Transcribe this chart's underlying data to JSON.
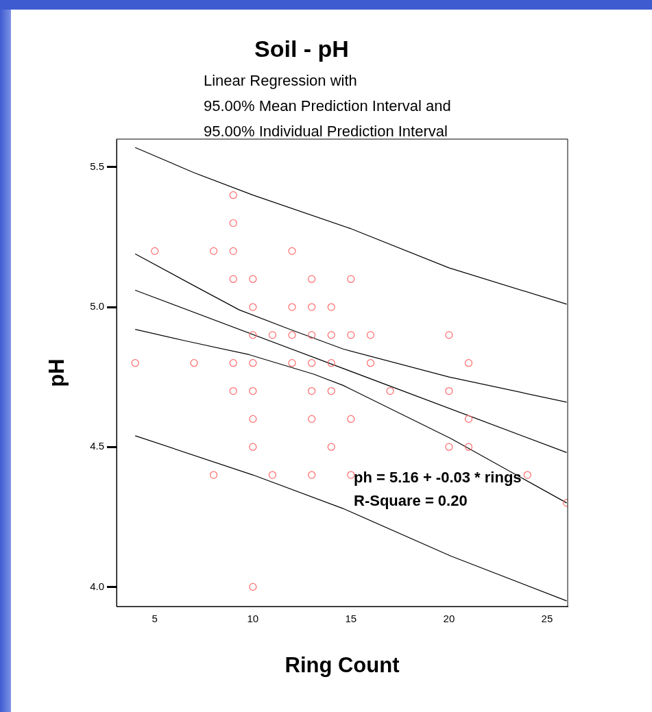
{
  "chart_data": {
    "type": "scatter",
    "title": "Soil - pH",
    "subtitle": "Linear Regression with\n95.00% Mean Prediction Interval and\n95.00% Individual Prediction Interval",
    "xlabel": "Ring Count",
    "ylabel": "pH",
    "annotations": [
      "ph = 5.16 + -0.03 * rings",
      "R-Square = 0.20"
    ],
    "xlim": [
      3.05,
      26.05
    ],
    "xticks": [
      5,
      10,
      15,
      20,
      25
    ],
    "ylim": [
      3.93,
      5.6
    ],
    "yticks": [
      {
        "value": 4,
        "label": "4.0"
      },
      {
        "value": 4.5,
        "label": "4.5"
      },
      {
        "value": 5,
        "label": "5.0"
      },
      {
        "value": 5.5,
        "label": "5.5"
      }
    ],
    "grid": false,
    "legend": false,
    "series": [
      {
        "marker": "circle",
        "color": "#ff6b6b",
        "x": [
          9,
          9,
          5,
          8,
          9,
          12,
          9,
          10,
          13,
          15,
          10,
          12,
          13,
          14,
          10,
          11,
          12,
          13,
          14,
          15,
          16,
          20,
          4,
          7,
          9,
          10,
          12,
          13,
          14,
          16,
          21,
          9,
          10,
          13,
          14,
          17,
          20,
          10,
          13,
          15,
          21,
          10,
          14,
          20,
          21,
          8,
          11,
          13,
          15,
          24,
          26,
          10
        ],
        "values": [
          5.4,
          5.3,
          5.2,
          5.2,
          5.2,
          5.2,
          5.1,
          5.1,
          5.1,
          5.1,
          5.0,
          5.0,
          5.0,
          5.0,
          4.9,
          4.9,
          4.9,
          4.9,
          4.9,
          4.9,
          4.9,
          4.9,
          4.8,
          4.8,
          4.8,
          4.8,
          4.8,
          4.8,
          4.8,
          4.8,
          4.8,
          4.7,
          4.7,
          4.7,
          4.7,
          4.7,
          4.7,
          4.6,
          4.6,
          4.6,
          4.6,
          4.5,
          4.5,
          4.5,
          4.5,
          4.4,
          4.4,
          4.4,
          4.4,
          4.4,
          4.3,
          4.0
        ]
      },
      {
        "type": "line",
        "color": "#000000",
        "x": [
          4,
          7,
          10,
          15,
          20,
          26
        ],
        "values": [
          5.57,
          5.48,
          5.4,
          5.28,
          5.14,
          5.01
        ],
        "marker": "none"
      },
      {
        "type": "line",
        "color": "#000000",
        "x": [
          4,
          6.9,
          9.3,
          11.9,
          14.6,
          20,
          26
        ],
        "values": [
          5.19,
          5.08,
          4.99,
          4.92,
          4.85,
          4.75,
          4.66
        ],
        "marker": "none"
      },
      {
        "type": "line",
        "color": "#000000",
        "x": [
          4,
          26
        ],
        "values": [
          5.06,
          4.48
        ],
        "marker": "none"
      },
      {
        "type": "line",
        "color": "#000000",
        "x": [
          4,
          6.5,
          9.8,
          13.1,
          14.6,
          20.1,
          26
        ],
        "values": [
          4.92,
          4.88,
          4.83,
          4.76,
          4.72,
          4.53,
          4.3
        ],
        "marker": "none"
      },
      {
        "type": "line",
        "color": "#000000",
        "x": [
          4,
          10,
          14.6,
          20.1,
          26
        ],
        "values": [
          4.54,
          4.4,
          4.28,
          4.11,
          3.95
        ],
        "marker": "none"
      }
    ]
  }
}
